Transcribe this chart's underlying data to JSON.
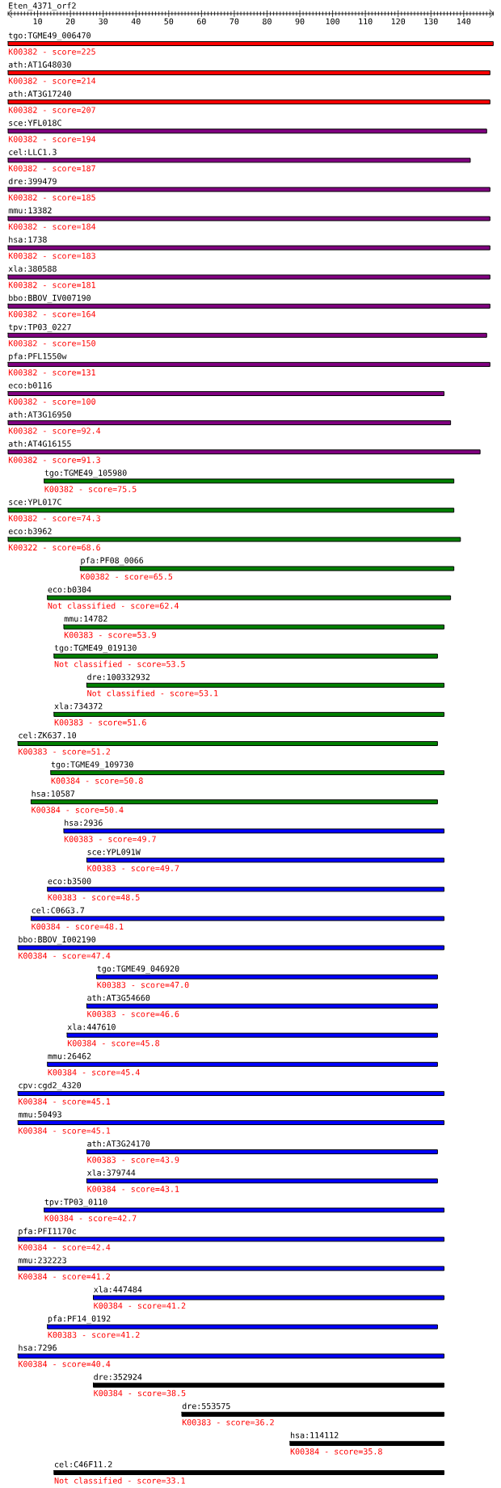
{
  "chart_data": {
    "type": "bar",
    "orientation": "horizontal",
    "title": "Eten_4371_orf2",
    "categories": [
      "tgo:TGME49_006470",
      "ath:AT1G48030",
      "ath:AT3G17240",
      "sce:YFL018C",
      "cel:LLC1.3",
      "dre:399479",
      "mmu:13382",
      "hsa:1738",
      "xla:380588",
      "bbo:BBOV_IV007190",
      "tpv:TP03_0227",
      "pfa:PFL1550w",
      "eco:b0116",
      "ath:AT3G16950",
      "ath:AT4G16155",
      "tgo:TGME49_105980",
      "sce:YPL017C",
      "eco:b3962",
      "pfa:PF08_0066",
      "eco:b0304",
      "mmu:14782",
      "tgo:TGME49_019130",
      "dre:100332932",
      "xla:734372",
      "cel:ZK637.10",
      "tgo:TGME49_109730",
      "hsa:10587",
      "hsa:2936",
      "sce:YPL091W",
      "eco:b3500",
      "cel:C06G3.7",
      "bbo:BBOV_I002190",
      "tgo:TGME49_046920",
      "ath:AT3G54660",
      "xla:447610",
      "mmu:26462",
      "cpv:cgd2_4320",
      "mmu:50493",
      "ath:AT3G24170",
      "xla:379744",
      "tpv:TP03_0110",
      "pfa:PFI1170c",
      "mmu:232223",
      "xla:447484",
      "pfa:PF14_0192",
      "hsa:7296",
      "dre:352924",
      "dre:553575",
      "hsa:114112",
      "cel:C46F11.2"
    ],
    "base": [
      1,
      1,
      1,
      1,
      1,
      1,
      1,
      1,
      1,
      1,
      1,
      1,
      1,
      1,
      1,
      12,
      1,
      1,
      23,
      13,
      18,
      15,
      25,
      15,
      4,
      14,
      8,
      18,
      25,
      13,
      8,
      4,
      28,
      25,
      19,
      13,
      4,
      4,
      25,
      25,
      12,
      4,
      4,
      27,
      13,
      4,
      27,
      54,
      87,
      15
    ],
    "values": [
      148,
      147,
      147,
      146,
      141,
      147,
      147,
      147,
      147,
      147,
      146,
      147,
      133,
      135,
      144,
      125,
      136,
      138,
      114,
      123,
      116,
      117,
      109,
      119,
      128,
      120,
      124,
      116,
      109,
      121,
      126,
      130,
      104,
      107,
      113,
      119,
      130,
      130,
      107,
      107,
      122,
      130,
      130,
      107,
      119,
      130,
      107,
      80,
      47,
      119
    ],
    "colors": [
      "#ff0000",
      "#ff0000",
      "#ff0000",
      "#800080",
      "#800080",
      "#800080",
      "#800080",
      "#800080",
      "#800080",
      "#800080",
      "#800080",
      "#800080",
      "#800080",
      "#800080",
      "#800080",
      "#008000",
      "#008000",
      "#008000",
      "#008000",
      "#008000",
      "#008000",
      "#008000",
      "#008000",
      "#008000",
      "#008000",
      "#008000",
      "#008000",
      "#0000ff",
      "#0000ff",
      "#0000ff",
      "#0000ff",
      "#0000ff",
      "#0000ff",
      "#0000ff",
      "#0000ff",
      "#0000ff",
      "#0000ff",
      "#0000ff",
      "#0000ff",
      "#0000ff",
      "#0000ff",
      "#0000ff",
      "#0000ff",
      "#0000ff",
      "#0000ff",
      "#0000ff",
      "#000000",
      "#000000",
      "#000000",
      "#000000"
    ],
    "annotations": [
      {
        "text": "K00382 - score=225",
        "x": 1,
        "y": "tgo:TGME49_006470"
      },
      {
        "text": "K00382 - score=214",
        "x": 1,
        "y": "ath:AT1G48030"
      },
      {
        "text": "K00382 - score=207",
        "x": 1,
        "y": "ath:AT3G17240"
      },
      {
        "text": "K00382 - score=194",
        "x": 1,
        "y": "sce:YFL018C"
      },
      {
        "text": "K00382 - score=187",
        "x": 1,
        "y": "cel:LLC1.3"
      },
      {
        "text": "K00382 - score=185",
        "x": 1,
        "y": "dre:399479"
      },
      {
        "text": "K00382 - score=184",
        "x": 1,
        "y": "mmu:13382"
      },
      {
        "text": "K00382 - score=183",
        "x": 1,
        "y": "hsa:1738"
      },
      {
        "text": "K00382 - score=181",
        "x": 1,
        "y": "xla:380588"
      },
      {
        "text": "K00382 - score=164",
        "x": 1,
        "y": "bbo:BBOV_IV007190"
      },
      {
        "text": "K00382 - score=150",
        "x": 1,
        "y": "tpv:TP03_0227"
      },
      {
        "text": "K00382 - score=131",
        "x": 1,
        "y": "pfa:PFL1550w"
      },
      {
        "text": "K00382 - score=100",
        "x": 1,
        "y": "eco:b0116"
      },
      {
        "text": "K00382 - score=92.4",
        "x": 1,
        "y": "ath:AT3G16950"
      },
      {
        "text": "K00382 - score=91.3",
        "x": 1,
        "y": "ath:AT4G16155"
      },
      {
        "text": "K00382 - score=75.5",
        "x": 12,
        "y": "tgo:TGME49_105980"
      },
      {
        "text": "K00382 - score=74.3",
        "x": 1,
        "y": "sce:YPL017C"
      },
      {
        "text": "K00322 - score=68.6",
        "x": 1,
        "y": "eco:b3962"
      },
      {
        "text": "K00382 - score=65.5",
        "x": 23,
        "y": "pfa:PF08_0066"
      },
      {
        "text": "Not classified - score=62.4",
        "x": 13,
        "y": "eco:b0304"
      },
      {
        "text": "K00383 - score=53.9",
        "x": 18,
        "y": "mmu:14782"
      },
      {
        "text": "Not classified - score=53.5",
        "x": 15,
        "y": "tgo:TGME49_019130"
      },
      {
        "text": "Not classified - score=53.1",
        "x": 25,
        "y": "dre:100332932"
      },
      {
        "text": "K00383 - score=51.6",
        "x": 15,
        "y": "xla:734372"
      },
      {
        "text": "K00383 - score=51.2",
        "x": 4,
        "y": "cel:ZK637.10"
      },
      {
        "text": "K00384 - score=50.8",
        "x": 14,
        "y": "tgo:TGME49_109730"
      },
      {
        "text": "K00384 - score=50.4",
        "x": 8,
        "y": "hsa:10587"
      },
      {
        "text": "K00383 - score=49.7",
        "x": 18,
        "y": "hsa:2936"
      },
      {
        "text": "K00383 - score=49.7",
        "x": 25,
        "y": "sce:YPL091W"
      },
      {
        "text": "K00383 - score=48.5",
        "x": 13,
        "y": "eco:b3500"
      },
      {
        "text": "K00384 - score=48.1",
        "x": 8,
        "y": "cel:C06G3.7"
      },
      {
        "text": "K00384 - score=47.4",
        "x": 4,
        "y": "bbo:BBOV_I002190"
      },
      {
        "text": "K00383 - score=47.0",
        "x": 28,
        "y": "tgo:TGME49_046920"
      },
      {
        "text": "K00383 - score=46.6",
        "x": 25,
        "y": "ath:AT3G54660"
      },
      {
        "text": "K00384 - score=45.8",
        "x": 19,
        "y": "xla:447610"
      },
      {
        "text": "K00384 - score=45.4",
        "x": 13,
        "y": "mmu:26462"
      },
      {
        "text": "K00384 - score=45.1",
        "x": 4,
        "y": "cpv:cgd2_4320"
      },
      {
        "text": "K00384 - score=45.1",
        "x": 4,
        "y": "mmu:50493"
      },
      {
        "text": "K00383 - score=43.9",
        "x": 25,
        "y": "ath:AT3G24170"
      },
      {
        "text": "K00384 - score=43.1",
        "x": 25,
        "y": "xla:379744"
      },
      {
        "text": "K00384 - score=42.7",
        "x": 12,
        "y": "tpv:TP03_0110"
      },
      {
        "text": "K00384 - score=42.4",
        "x": 4,
        "y": "pfa:PFI1170c"
      },
      {
        "text": "K00384 - score=41.2",
        "x": 4,
        "y": "mmu:232223"
      },
      {
        "text": "K00384 - score=41.2",
        "x": 27,
        "y": "xla:447484"
      },
      {
        "text": "K00383 - score=41.2",
        "x": 13,
        "y": "pfa:PF14_0192"
      },
      {
        "text": "K00384 - score=40.4",
        "x": 4,
        "y": "hsa:7296"
      },
      {
        "text": "K00384 - score=38.5",
        "x": 27,
        "y": "dre:352924"
      },
      {
        "text": "K00383 - score=36.2",
        "x": 54,
        "y": "dre:553575"
      },
      {
        "text": "K00384 - score=35.8",
        "x": 87,
        "y": "hsa:114112"
      },
      {
        "text": "Not classified - score=33.1",
        "x": 15,
        "y": "cel:C46F11.2"
      }
    ],
    "xlim": [
      1,
      149
    ],
    "xticks": [
      10,
      20,
      30,
      40,
      50,
      60,
      70,
      80,
      90,
      100,
      110,
      120,
      130,
      140
    ]
  }
}
